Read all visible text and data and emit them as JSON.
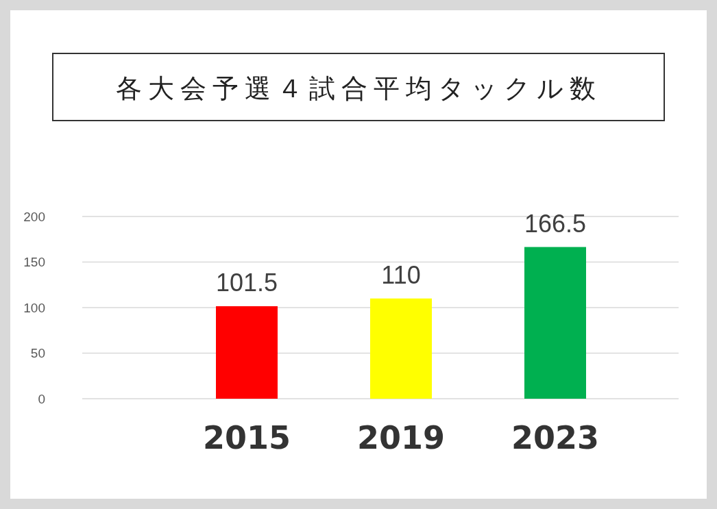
{
  "chart_data": {
    "type": "bar",
    "title": "各大会予選４試合平均タックル数",
    "categories": [
      "2015",
      "2019",
      "2023"
    ],
    "values": [
      101.5,
      110,
      166.5
    ],
    "colors": [
      "#ff0000",
      "#ffff00",
      "#00b050"
    ],
    "ylim": [
      0,
      200
    ],
    "yticks": [
      0,
      50,
      100,
      150,
      200
    ],
    "grid": "y",
    "data_labels": true
  }
}
